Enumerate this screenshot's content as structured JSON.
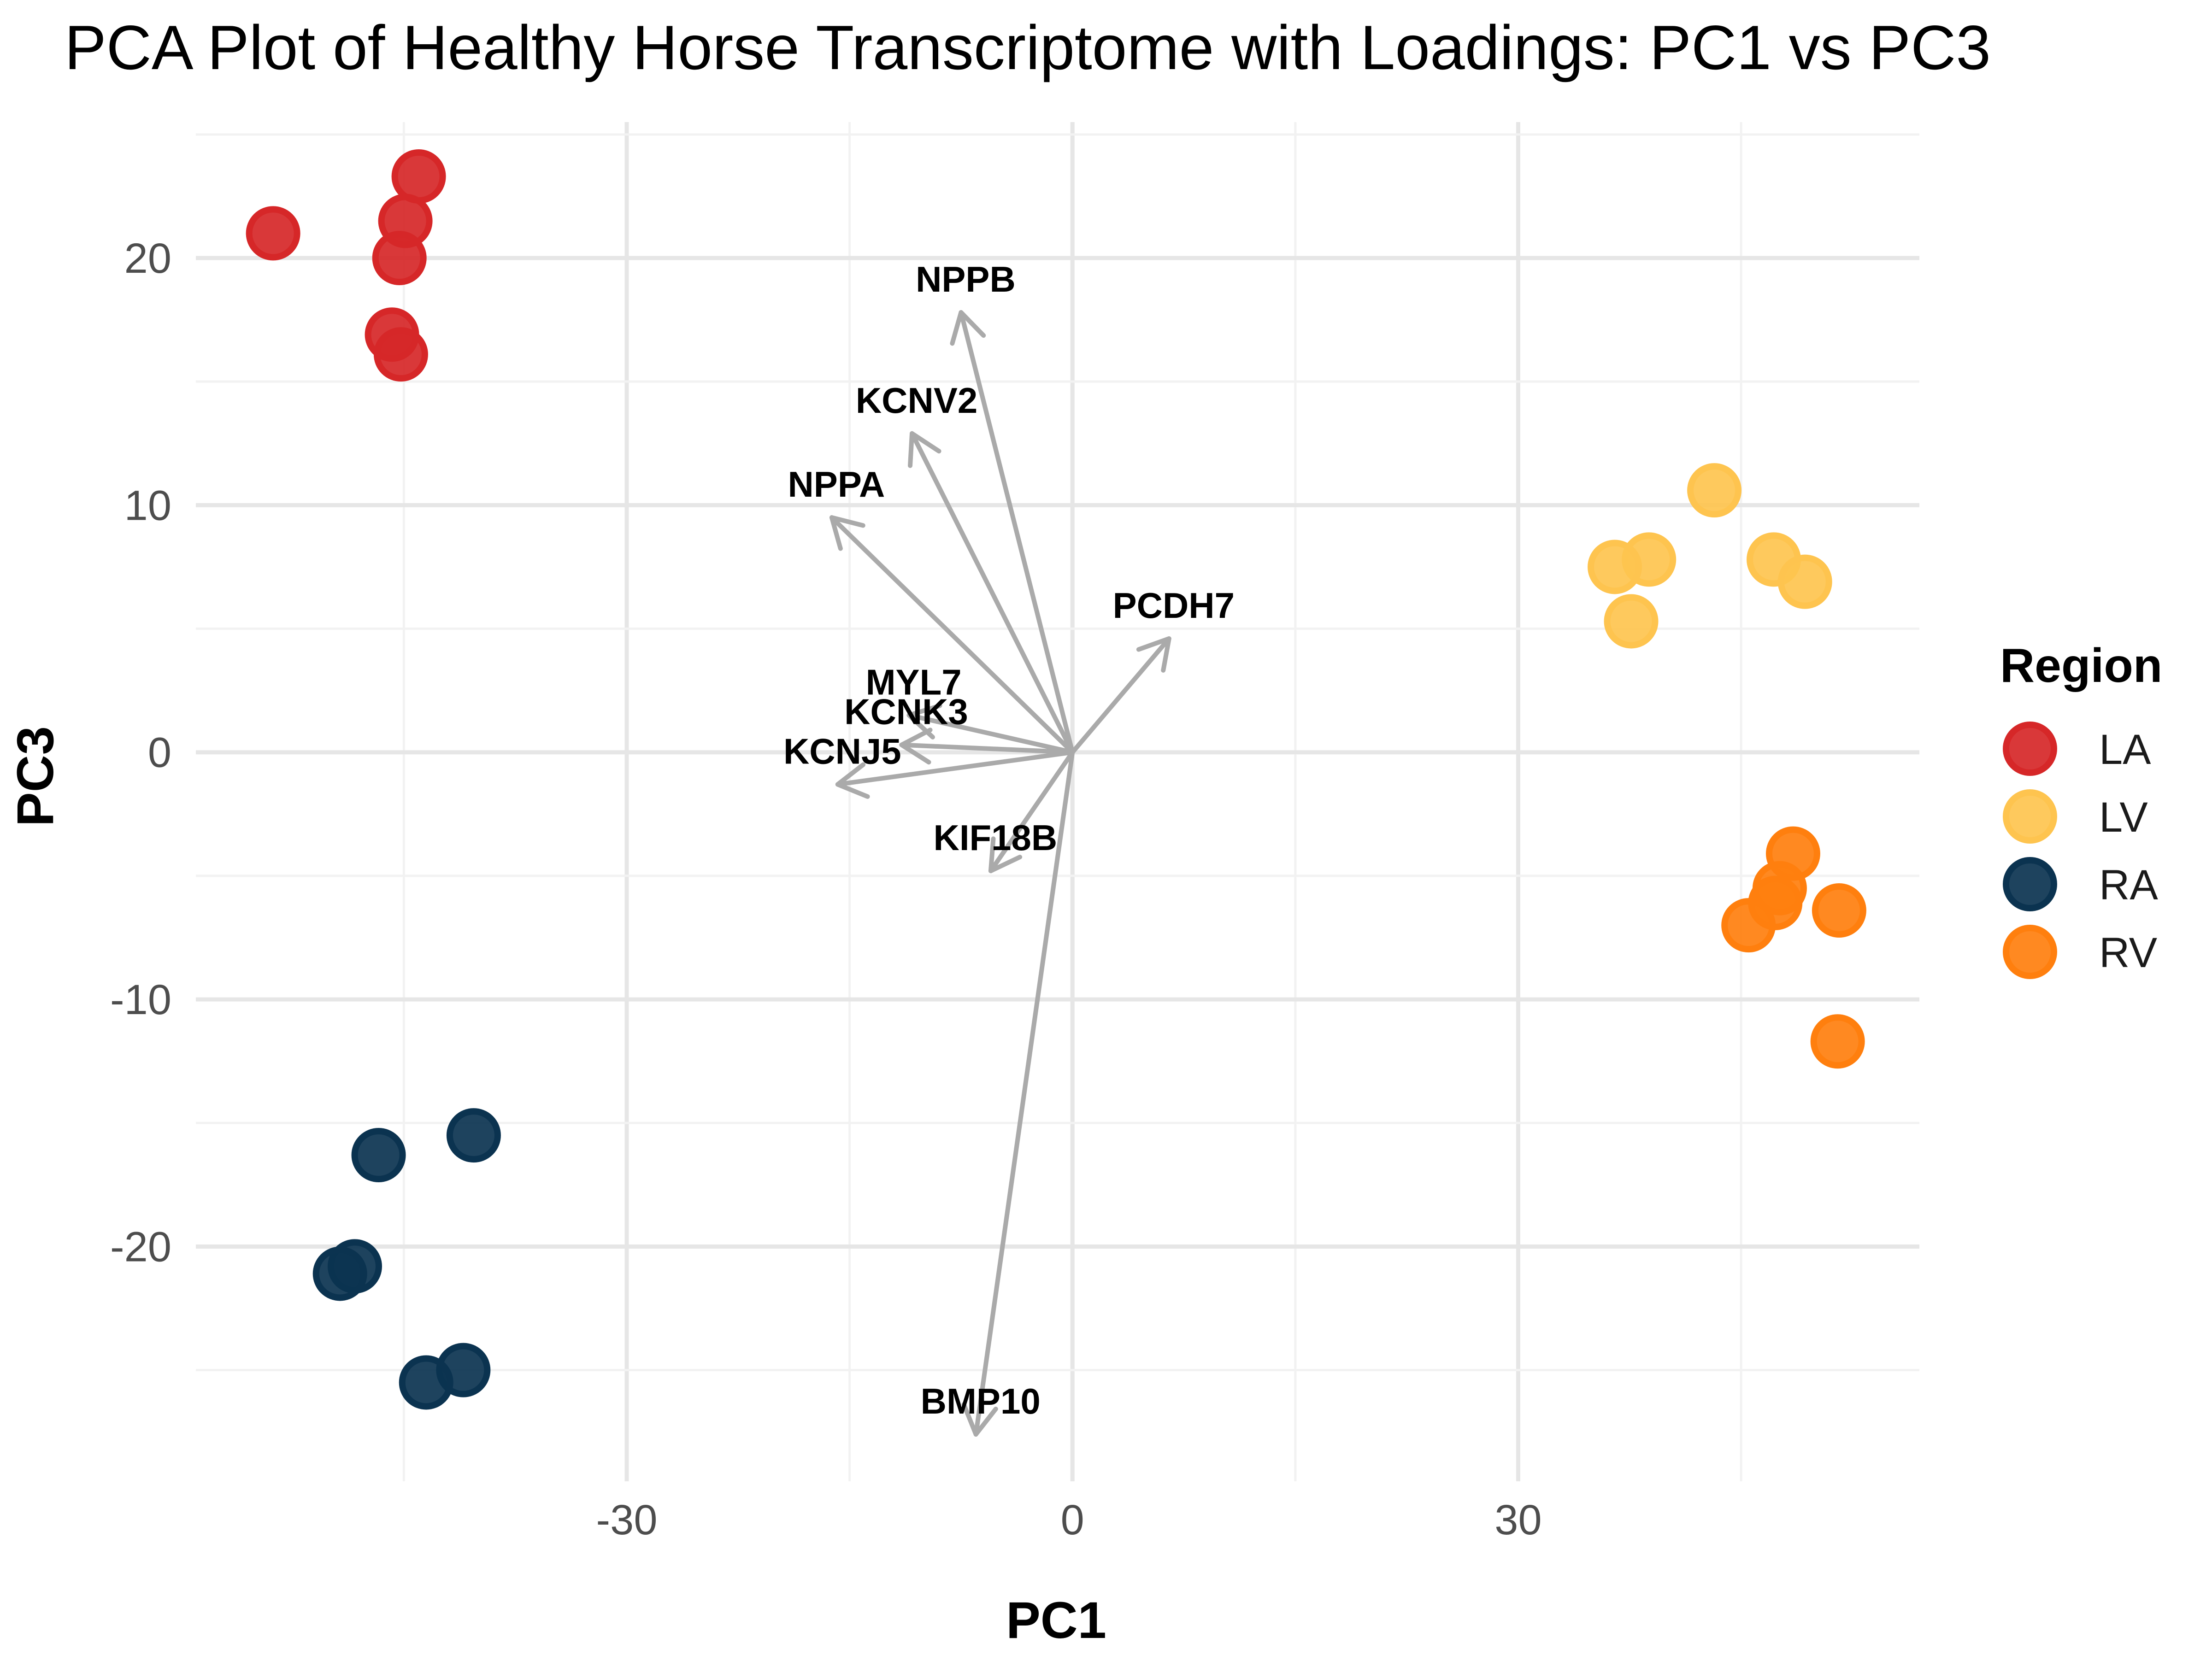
{
  "chart_data": {
    "type": "scatter",
    "title": "PCA Plot of Healthy Horse Transcriptome with Loadings: PC1 vs PC3",
    "xlabel": "PC1",
    "ylabel": "PC3",
    "xlim": [
      -59,
      57
    ],
    "ylim": [
      -29.5,
      25.5
    ],
    "x_ticks": [
      -30,
      0,
      30
    ],
    "x_tick_labels": [
      "-30",
      "0",
      "30"
    ],
    "y_ticks": [
      -20,
      -10,
      0,
      10,
      20
    ],
    "y_tick_labels": [
      "-20",
      "-10",
      "0",
      "10",
      "20"
    ],
    "grid": true,
    "legend": {
      "title": "Region",
      "position": "right"
    },
    "series": [
      {
        "name": "LA",
        "color": "#d62728",
        "points": [
          [
            -53.8,
            21.0
          ],
          [
            -44.0,
            23.3
          ],
          [
            -44.9,
            21.5
          ],
          [
            -45.3,
            20.0
          ],
          [
            -45.8,
            16.9
          ],
          [
            -45.2,
            16.1
          ]
        ]
      },
      {
        "name": "LV",
        "color": "#fec44f",
        "points": [
          [
            43.2,
            10.6
          ],
          [
            47.2,
            7.8
          ],
          [
            49.3,
            6.9
          ],
          [
            38.8,
            7.8
          ],
          [
            36.5,
            7.5
          ],
          [
            37.6,
            5.3
          ]
        ]
      },
      {
        "name": "RA",
        "color": "#0b3350",
        "points": [
          [
            -40.3,
            -15.5
          ],
          [
            -46.7,
            -16.3
          ],
          [
            -48.3,
            -20.8
          ],
          [
            -49.3,
            -21.1
          ],
          [
            -41.0,
            -25.0
          ],
          [
            -43.5,
            -25.5
          ]
        ]
      },
      {
        "name": "RV",
        "color": "#ff7f0e",
        "points": [
          [
            48.5,
            -4.1
          ],
          [
            47.6,
            -5.5
          ],
          [
            47.3,
            -6.1
          ],
          [
            45.5,
            -7.0
          ],
          [
            51.6,
            -6.4
          ],
          [
            51.5,
            -11.7
          ]
        ]
      }
    ],
    "loadings": {
      "color": "#aaaaaa",
      "arrows": [
        {
          "label": "NPPB",
          "x": -7.5,
          "y": 17.8
        },
        {
          "label": "KCNV2",
          "x": -10.8,
          "y": 12.9
        },
        {
          "label": "NPPA",
          "x": -16.2,
          "y": 9.5
        },
        {
          "label": "PCDH7",
          "x": 6.5,
          "y": 4.6
        },
        {
          "label": "MYL7",
          "x": -11.0,
          "y": 1.5
        },
        {
          "label": "KCNK3",
          "x": -11.5,
          "y": 0.3
        },
        {
          "label": "KCNJ5",
          "x": -15.8,
          "y": -1.3
        },
        {
          "label": "KIF18B",
          "x": -5.5,
          "y": -4.8
        },
        {
          "label": "BMP10",
          "x": -6.5,
          "y": -27.6
        }
      ]
    }
  }
}
